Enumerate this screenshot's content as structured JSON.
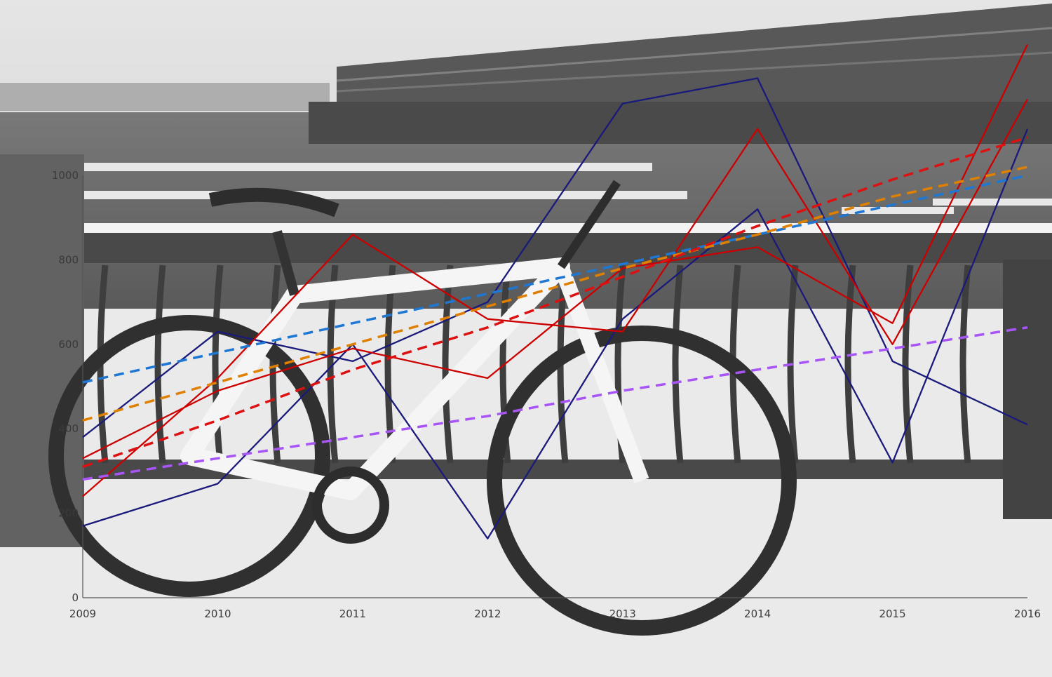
{
  "chart_data": {
    "type": "line",
    "title": "",
    "xlabel": "",
    "ylabel": "",
    "x": [
      2009,
      2010,
      2011,
      2012,
      2013,
      2014,
      2015,
      2016
    ],
    "xlim": [
      2009,
      2016
    ],
    "ylim": [
      0,
      1000
    ],
    "x_ticks": [
      "2009",
      "2010",
      "2011",
      "2012",
      "2013",
      "2014",
      "2015",
      "2016"
    ],
    "y_ticks": [
      "0",
      "200",
      "400",
      "600",
      "800",
      "1000"
    ],
    "grid": false,
    "legend": "none",
    "series": [
      {
        "style": "solid",
        "color": "#1a1a7a",
        "values": [
          380,
          630,
          560,
          700,
          1170,
          1230,
          560,
          410
        ]
      },
      {
        "style": "solid",
        "color": "#1a1a7a",
        "values": [
          170,
          270,
          600,
          140,
          660,
          920,
          320,
          1110
        ]
      },
      {
        "style": "solid",
        "color": "#cc0000",
        "values": [
          240,
          520,
          860,
          660,
          630,
          1110,
          600,
          1180
        ]
      },
      {
        "style": "solid",
        "color": "#cc0000",
        "values": [
          330,
          490,
          590,
          520,
          780,
          830,
          650,
          1310
        ]
      },
      {
        "style": "dashed",
        "color": "#1f77d4",
        "values": [
          510,
          580,
          650,
          720,
          790,
          860,
          930,
          1000
        ]
      },
      {
        "style": "dashed",
        "color": "#e08000",
        "values": [
          420,
          510,
          600,
          690,
          780,
          860,
          950,
          1020
        ]
      },
      {
        "style": "dashed",
        "color": "#dd1111",
        "values": [
          310,
          420,
          540,
          640,
          760,
          880,
          990,
          1090
        ]
      },
      {
        "style": "dashed",
        "color": "#a855f7",
        "values": [
          280,
          330,
          380,
          430,
          490,
          540,
          590,
          640
        ]
      }
    ]
  }
}
